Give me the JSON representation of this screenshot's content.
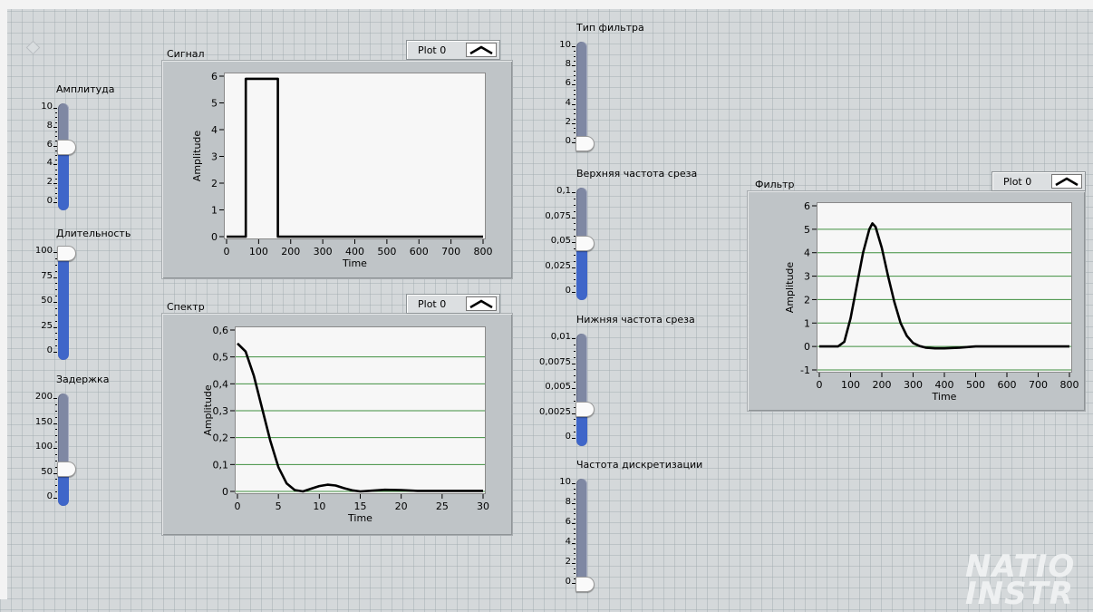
{
  "controls": {
    "amplitude": {
      "label": "Амплитуда",
      "ticks": [
        "10",
        "8",
        "6",
        "4",
        "2",
        "0"
      ],
      "value": 6,
      "max": 10
    },
    "duration": {
      "label": "Длительность",
      "ticks": [
        "100",
        "75",
        "50",
        "25",
        "0"
      ],
      "value": 100,
      "max": 100
    },
    "delay": {
      "label": "Задержка",
      "ticks": [
        "200",
        "150",
        "100",
        "50",
        "0"
      ],
      "value": 60,
      "max": 200
    },
    "filter_type": {
      "label": "Тип фильтра",
      "ticks": [
        "10",
        "8",
        "6",
        "4",
        "2",
        "0"
      ],
      "value": 0,
      "max": 10
    },
    "upper_cutoff": {
      "label": "Верхняя частота среза",
      "ticks": [
        "0,1",
        "0,075",
        "0,05",
        "0,025",
        "0"
      ],
      "value": 0.05,
      "max": 0.1
    },
    "lower_cutoff": {
      "label": "Нижняя частота среза",
      "ticks": [
        "0,01",
        "0,0075",
        "0,005",
        "0,0025",
        "0"
      ],
      "value": 0.003,
      "max": 0.01
    },
    "sample_rate": {
      "label": "Частота дискретизации",
      "ticks": [
        "10",
        "8",
        "6",
        "4",
        "2",
        "0"
      ],
      "value": 0,
      "max": 10
    }
  },
  "graphs": {
    "signal": {
      "title": "Сигнал",
      "legend": "Plot 0",
      "xlabel": "Time",
      "ylabel": "Amplitude"
    },
    "spectrum": {
      "title": "Спектр",
      "legend": "Plot 0",
      "xlabel": "Time",
      "ylabel": "Amplitude"
    },
    "filter": {
      "title": "Фильтр",
      "legend": "Plot 0",
      "xlabel": "Time",
      "ylabel": "Amplitude"
    }
  },
  "logo": {
    "line1": "NATIO",
    "line2": "INSTR"
  },
  "chart_data": [
    {
      "type": "line",
      "title": "Сигнал",
      "xlabel": "Time",
      "ylabel": "Amplitude",
      "xlim": [
        0,
        800
      ],
      "ylim": [
        0,
        6
      ],
      "xticks": [
        "0",
        "100",
        "200",
        "300",
        "400",
        "500",
        "600",
        "700",
        "800"
      ],
      "yticks": [
        "6",
        "5",
        "4",
        "3",
        "2",
        "1",
        "0"
      ],
      "grid": false,
      "series": [
        {
          "name": "Plot 0",
          "x": [
            0,
            60,
            60,
            160,
            160,
            800
          ],
          "y": [
            0,
            0,
            5.9,
            5.9,
            0,
            0
          ]
        }
      ]
    },
    {
      "type": "line",
      "title": "Спектр",
      "xlabel": "Time",
      "ylabel": "Amplitude",
      "xlim": [
        0,
        30
      ],
      "ylim": [
        0,
        0.6
      ],
      "xticks": [
        "0",
        "5",
        "10",
        "15",
        "20",
        "25",
        "30"
      ],
      "yticks": [
        "0,6",
        "0,5",
        "0,4",
        "0,3",
        "0,2",
        "0,1",
        "0"
      ],
      "grid": true,
      "series": [
        {
          "name": "Plot 0",
          "x": [
            0,
            1,
            2,
            3,
            4,
            5,
            6,
            7,
            8,
            9,
            10,
            11,
            12,
            13,
            14,
            15,
            16,
            18,
            20,
            22,
            25,
            30
          ],
          "y": [
            0.55,
            0.52,
            0.43,
            0.31,
            0.19,
            0.09,
            0.03,
            0.005,
            0.0,
            0.01,
            0.02,
            0.025,
            0.022,
            0.012,
            0.004,
            0.0,
            0.002,
            0.006,
            0.005,
            0.002,
            0.002,
            0.002
          ]
        }
      ]
    },
    {
      "type": "line",
      "title": "Фильтр",
      "xlabel": "Time",
      "ylabel": "Amplitude",
      "xlim": [
        0,
        800
      ],
      "ylim": [
        -1,
        6
      ],
      "xticks": [
        "0",
        "100",
        "200",
        "300",
        "400",
        "500",
        "600",
        "700",
        "800"
      ],
      "yticks": [
        "6",
        "5",
        "4",
        "3",
        "2",
        "1",
        "0",
        "-1"
      ],
      "grid": true,
      "series": [
        {
          "name": "Plot 0",
          "x": [
            0,
            60,
            80,
            100,
            120,
            140,
            160,
            170,
            180,
            200,
            220,
            240,
            260,
            280,
            300,
            320,
            340,
            370,
            400,
            450,
            500,
            600,
            800
          ],
          "y": [
            0,
            0,
            0.2,
            1.2,
            2.6,
            4.0,
            5.0,
            5.25,
            5.1,
            4.2,
            3.0,
            1.9,
            1.0,
            0.45,
            0.15,
            0.02,
            -0.05,
            -0.08,
            -0.08,
            -0.05,
            0.0,
            0.0,
            0.0
          ]
        }
      ]
    }
  ]
}
